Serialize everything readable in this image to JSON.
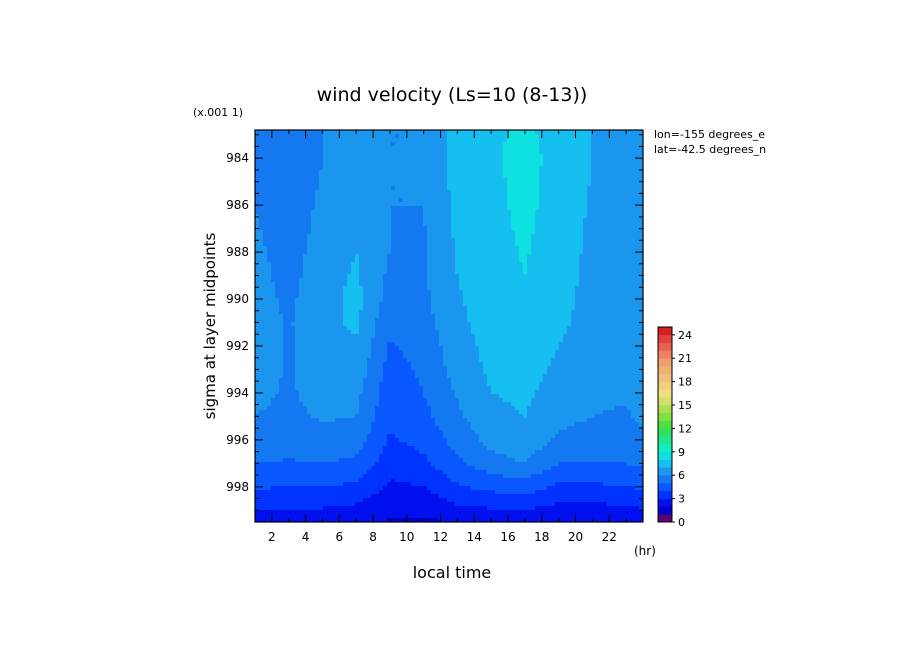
{
  "chart_data": {
    "type": "heatmap",
    "title": "wind velocity (Ls=10 (8-13))",
    "xlabel": "local time",
    "ylabel": "sigma at layer midpoints",
    "x_unit": "(hr)",
    "y_scale_label": "(x.001 1)",
    "annotations": [
      "lon=-155 degrees_e",
      "lat=-42.5 degrees_n"
    ],
    "x_ticks": [
      "2",
      "4",
      "6",
      "8",
      "10",
      "12",
      "14",
      "16",
      "18",
      "20",
      "22"
    ],
    "y_ticks": [
      "984",
      "986",
      "988",
      "990",
      "992",
      "994",
      "996",
      "998"
    ],
    "xlim": [
      1,
      24
    ],
    "ylim_sigma_x1000": [
      982.8,
      999.5
    ],
    "colorbar_ticks": [
      "24",
      "21",
      "18",
      "15",
      "12",
      "9",
      "6",
      "3",
      "0"
    ],
    "colorbar_range": [
      0,
      25
    ],
    "colorbar_levels": [
      {
        "level": 0,
        "color": "#5a0070"
      },
      {
        "level": 1,
        "color": "#0000cc"
      },
      {
        "level": 2,
        "color": "#0010ee"
      },
      {
        "level": 3,
        "color": "#0033ff"
      },
      {
        "level": 4,
        "color": "#0a58ff"
      },
      {
        "level": 5,
        "color": "#1478f0"
      },
      {
        "level": 6,
        "color": "#1b96ef"
      },
      {
        "level": 7,
        "color": "#15bff0"
      },
      {
        "level": 8,
        "color": "#0fe0e0"
      },
      {
        "level": 9,
        "color": "#10f0c0"
      },
      {
        "level": 10,
        "color": "#20e890"
      },
      {
        "level": 11,
        "color": "#30e060"
      },
      {
        "level": 12,
        "color": "#50e040"
      },
      {
        "level": 13,
        "color": "#80e040"
      },
      {
        "level": 14,
        "color": "#a8e050"
      },
      {
        "level": 15,
        "color": "#d0e070"
      },
      {
        "level": 16,
        "color": "#f0e080"
      },
      {
        "level": 17,
        "color": "#f0d080"
      },
      {
        "level": 18,
        "color": "#f0c080"
      },
      {
        "level": 19,
        "color": "#f0b070"
      },
      {
        "level": 20,
        "color": "#f0a070"
      },
      {
        "level": 21,
        "color": "#f08060"
      },
      {
        "level": 22,
        "color": "#e86050"
      },
      {
        "level": 23,
        "color": "#e04040"
      },
      {
        "level": 24,
        "color": "#d02020"
      }
    ],
    "x": [
      1,
      3,
      5,
      7,
      9,
      11,
      13,
      15,
      17,
      19,
      21,
      23,
      24
    ],
    "y": [
      982.8,
      984,
      986,
      988,
      990,
      991,
      992,
      993,
      994,
      995,
      996,
      997,
      998,
      999,
      999.5
    ],
    "values": [
      [
        5.8,
        5.2,
        6.0,
        6.2,
        6.0,
        6.0,
        7.5,
        7.8,
        8.2,
        7.6,
        7.0,
        6.5,
        6.4
      ],
      [
        5.7,
        5.0,
        6.0,
        6.2,
        6.0,
        6.0,
        7.4,
        7.8,
        8.4,
        7.6,
        7.0,
        6.5,
        6.4
      ],
      [
        6.0,
        5.4,
        6.2,
        6.7,
        6.0,
        6.0,
        7.3,
        7.7,
        8.3,
        7.5,
        6.9,
        6.4,
        6.4
      ],
      [
        6.2,
        5.6,
        6.4,
        7.0,
        6.0,
        5.9,
        7.1,
        7.6,
        8.1,
        7.4,
        6.8,
        6.4,
        6.6
      ],
      [
        6.4,
        5.8,
        6.6,
        7.3,
        5.6,
        5.8,
        6.9,
        7.5,
        7.9,
        7.3,
        6.7,
        6.4,
        6.8
      ],
      [
        6.5,
        5.9,
        6.7,
        7.2,
        5.2,
        5.6,
        6.8,
        7.4,
        7.8,
        7.2,
        6.6,
        6.3,
        6.8
      ],
      [
        6.5,
        5.9,
        6.6,
        6.9,
        4.9,
        5.4,
        6.6,
        7.3,
        7.6,
        7.0,
        6.5,
        6.3,
        6.7
      ],
      [
        6.4,
        5.9,
        6.5,
        6.6,
        4.6,
        5.2,
        6.4,
        7.2,
        7.4,
        6.8,
        6.4,
        6.3,
        6.6
      ],
      [
        6.2,
        5.9,
        6.3,
        6.3,
        4.4,
        5.0,
        6.1,
        7.0,
        7.2,
        6.6,
        6.2,
        6.1,
        6.4
      ],
      [
        6.0,
        5.8,
        6.1,
        6.0,
        4.2,
        4.7,
        5.8,
        6.7,
        7.0,
        6.3,
        6.0,
        5.9,
        6.2
      ],
      [
        5.6,
        5.5,
        5.7,
        5.5,
        3.9,
        4.3,
        5.4,
        6.3,
        6.7,
        5.8,
        5.6,
        5.6,
        5.8
      ],
      [
        5.0,
        4.9,
        5.0,
        4.8,
        3.4,
        3.8,
        4.8,
        5.6,
        6.0,
        5.0,
        4.9,
        5.0,
        5.2
      ],
      [
        4.1,
        4.0,
        4.0,
        3.8,
        2.8,
        3.0,
        3.9,
        4.3,
        4.5,
        3.8,
        3.8,
        4.0,
        4.1
      ],
      [
        3.0,
        2.9,
        2.9,
        2.7,
        2.2,
        2.2,
        2.7,
        2.9,
        3.0,
        2.6,
        2.6,
        2.8,
        2.9
      ],
      [
        2.4,
        2.3,
        2.3,
        2.2,
        1.9,
        1.8,
        2.1,
        2.2,
        2.3,
        2.0,
        2.0,
        2.2,
        2.3
      ]
    ]
  }
}
